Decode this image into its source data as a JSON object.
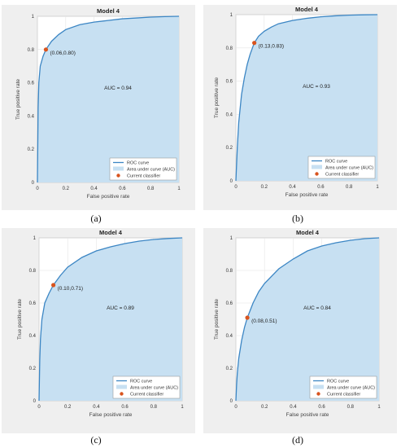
{
  "colors": {
    "curve": "#3c86c4",
    "area": "#c7e0f2",
    "marker": "#d9541e",
    "plot_bg": "#ffffff",
    "panel_bg": "#efefef",
    "grid": "#e6e6e6"
  },
  "chart_data": [
    {
      "type": "area",
      "panel_label": "(a)",
      "title": "Model 4",
      "xlabel": "False positive rate",
      "ylabel": "True positive rate",
      "xlim": [
        0,
        1
      ],
      "ylim": [
        0,
        1
      ],
      "xticks": [
        "0",
        "0.2",
        "0.4",
        "0.6",
        "0.8",
        "1"
      ],
      "yticks": [
        "0",
        "0.2",
        "0.4",
        "0.6",
        "0.8",
        "1"
      ],
      "x": [
        0,
        0.005,
        0.01,
        0.02,
        0.04,
        0.06,
        0.1,
        0.15,
        0.2,
        0.3,
        0.4,
        0.5,
        0.6,
        0.7,
        0.8,
        0.9,
        1.0
      ],
      "y": [
        0,
        0.45,
        0.6,
        0.7,
        0.76,
        0.8,
        0.85,
        0.89,
        0.92,
        0.95,
        0.965,
        0.975,
        0.985,
        0.99,
        0.995,
        0.998,
        1.0
      ],
      "point": {
        "x": 0.06,
        "y": 0.8,
        "label": "(0.06,0.80)"
      },
      "auc_label": "AUC = 0.94",
      "grid": true,
      "legend": {
        "position": "bottom-right",
        "entries": [
          "ROC curve",
          "Area under curve (AUC)",
          "Current classifier"
        ]
      }
    },
    {
      "type": "area",
      "panel_label": "(b)",
      "title": "Model 4",
      "xlabel": "False positive rate",
      "ylabel": "True positive rate",
      "xlim": [
        0,
        1
      ],
      "ylim": [
        0,
        1
      ],
      "xticks": [
        "0",
        "0.2",
        "0.4",
        "0.6",
        "0.8",
        "1"
      ],
      "yticks": [
        "0",
        "0.2",
        "0.4",
        "0.6",
        "0.8",
        "1"
      ],
      "x": [
        0,
        0.01,
        0.02,
        0.04,
        0.06,
        0.08,
        0.1,
        0.13,
        0.16,
        0.2,
        0.25,
        0.3,
        0.4,
        0.5,
        0.6,
        0.7,
        0.8,
        0.9,
        1.0
      ],
      "y": [
        0,
        0.2,
        0.35,
        0.52,
        0.62,
        0.7,
        0.76,
        0.83,
        0.87,
        0.9,
        0.925,
        0.945,
        0.965,
        0.978,
        0.987,
        0.993,
        0.997,
        0.999,
        1.0
      ],
      "point": {
        "x": 0.13,
        "y": 0.83,
        "label": "(0.13,0.83)"
      },
      "auc_label": "AUC = 0.93",
      "grid": true,
      "legend": {
        "position": "bottom-right",
        "entries": [
          "ROC curve",
          "Area under curve (AUC)",
          "Current classifier"
        ]
      }
    },
    {
      "type": "area",
      "panel_label": "(c)",
      "title": "Model 4",
      "xlabel": "False positive rate",
      "ylabel": "True positive rate",
      "xlim": [
        0,
        1
      ],
      "ylim": [
        0,
        1
      ],
      "xticks": [
        "0",
        "0.2",
        "0.4",
        "0.6",
        "0.8",
        "1"
      ],
      "yticks": [
        "0",
        "0.2",
        "0.4",
        "0.6",
        "0.8",
        "1"
      ],
      "x": [
        0,
        0.005,
        0.01,
        0.02,
        0.04,
        0.07,
        0.1,
        0.15,
        0.2,
        0.3,
        0.4,
        0.5,
        0.6,
        0.7,
        0.8,
        0.9,
        1.0
      ],
      "y": [
        0,
        0.25,
        0.38,
        0.5,
        0.6,
        0.66,
        0.71,
        0.77,
        0.82,
        0.88,
        0.92,
        0.945,
        0.965,
        0.98,
        0.99,
        0.996,
        1.0
      ],
      "point": {
        "x": 0.1,
        "y": 0.71,
        "label": "(0.10,0.71)"
      },
      "auc_label": "AUC = 0.89",
      "grid": true,
      "legend": {
        "position": "bottom-right",
        "entries": [
          "ROC curve",
          "Area under curve (AUC)",
          "Current classifier"
        ]
      }
    },
    {
      "type": "area",
      "panel_label": "(d)",
      "title": "Model 4",
      "xlabel": "False positive rate",
      "ylabel": "True positive rate",
      "xlim": [
        0,
        1
      ],
      "ylim": [
        0,
        1
      ],
      "xticks": [
        "0",
        "0.2",
        "0.4",
        "0.6",
        "0.8",
        "1"
      ],
      "yticks": [
        "0",
        "0.2",
        "0.4",
        "0.6",
        "0.8",
        "1"
      ],
      "x": [
        0,
        0.005,
        0.01,
        0.02,
        0.04,
        0.06,
        0.08,
        0.12,
        0.16,
        0.2,
        0.3,
        0.4,
        0.5,
        0.6,
        0.7,
        0.8,
        0.9,
        1.0
      ],
      "y": [
        0,
        0.1,
        0.17,
        0.26,
        0.37,
        0.45,
        0.51,
        0.6,
        0.67,
        0.72,
        0.81,
        0.87,
        0.92,
        0.95,
        0.97,
        0.985,
        0.995,
        1.0
      ],
      "point": {
        "x": 0.08,
        "y": 0.51,
        "label": "(0.08,0.51)"
      },
      "auc_label": "AUC = 0.84",
      "grid": true,
      "legend": {
        "position": "bottom-right",
        "entries": [
          "ROC curve",
          "Area under curve (AUC)",
          "Current classifier"
        ]
      }
    }
  ]
}
